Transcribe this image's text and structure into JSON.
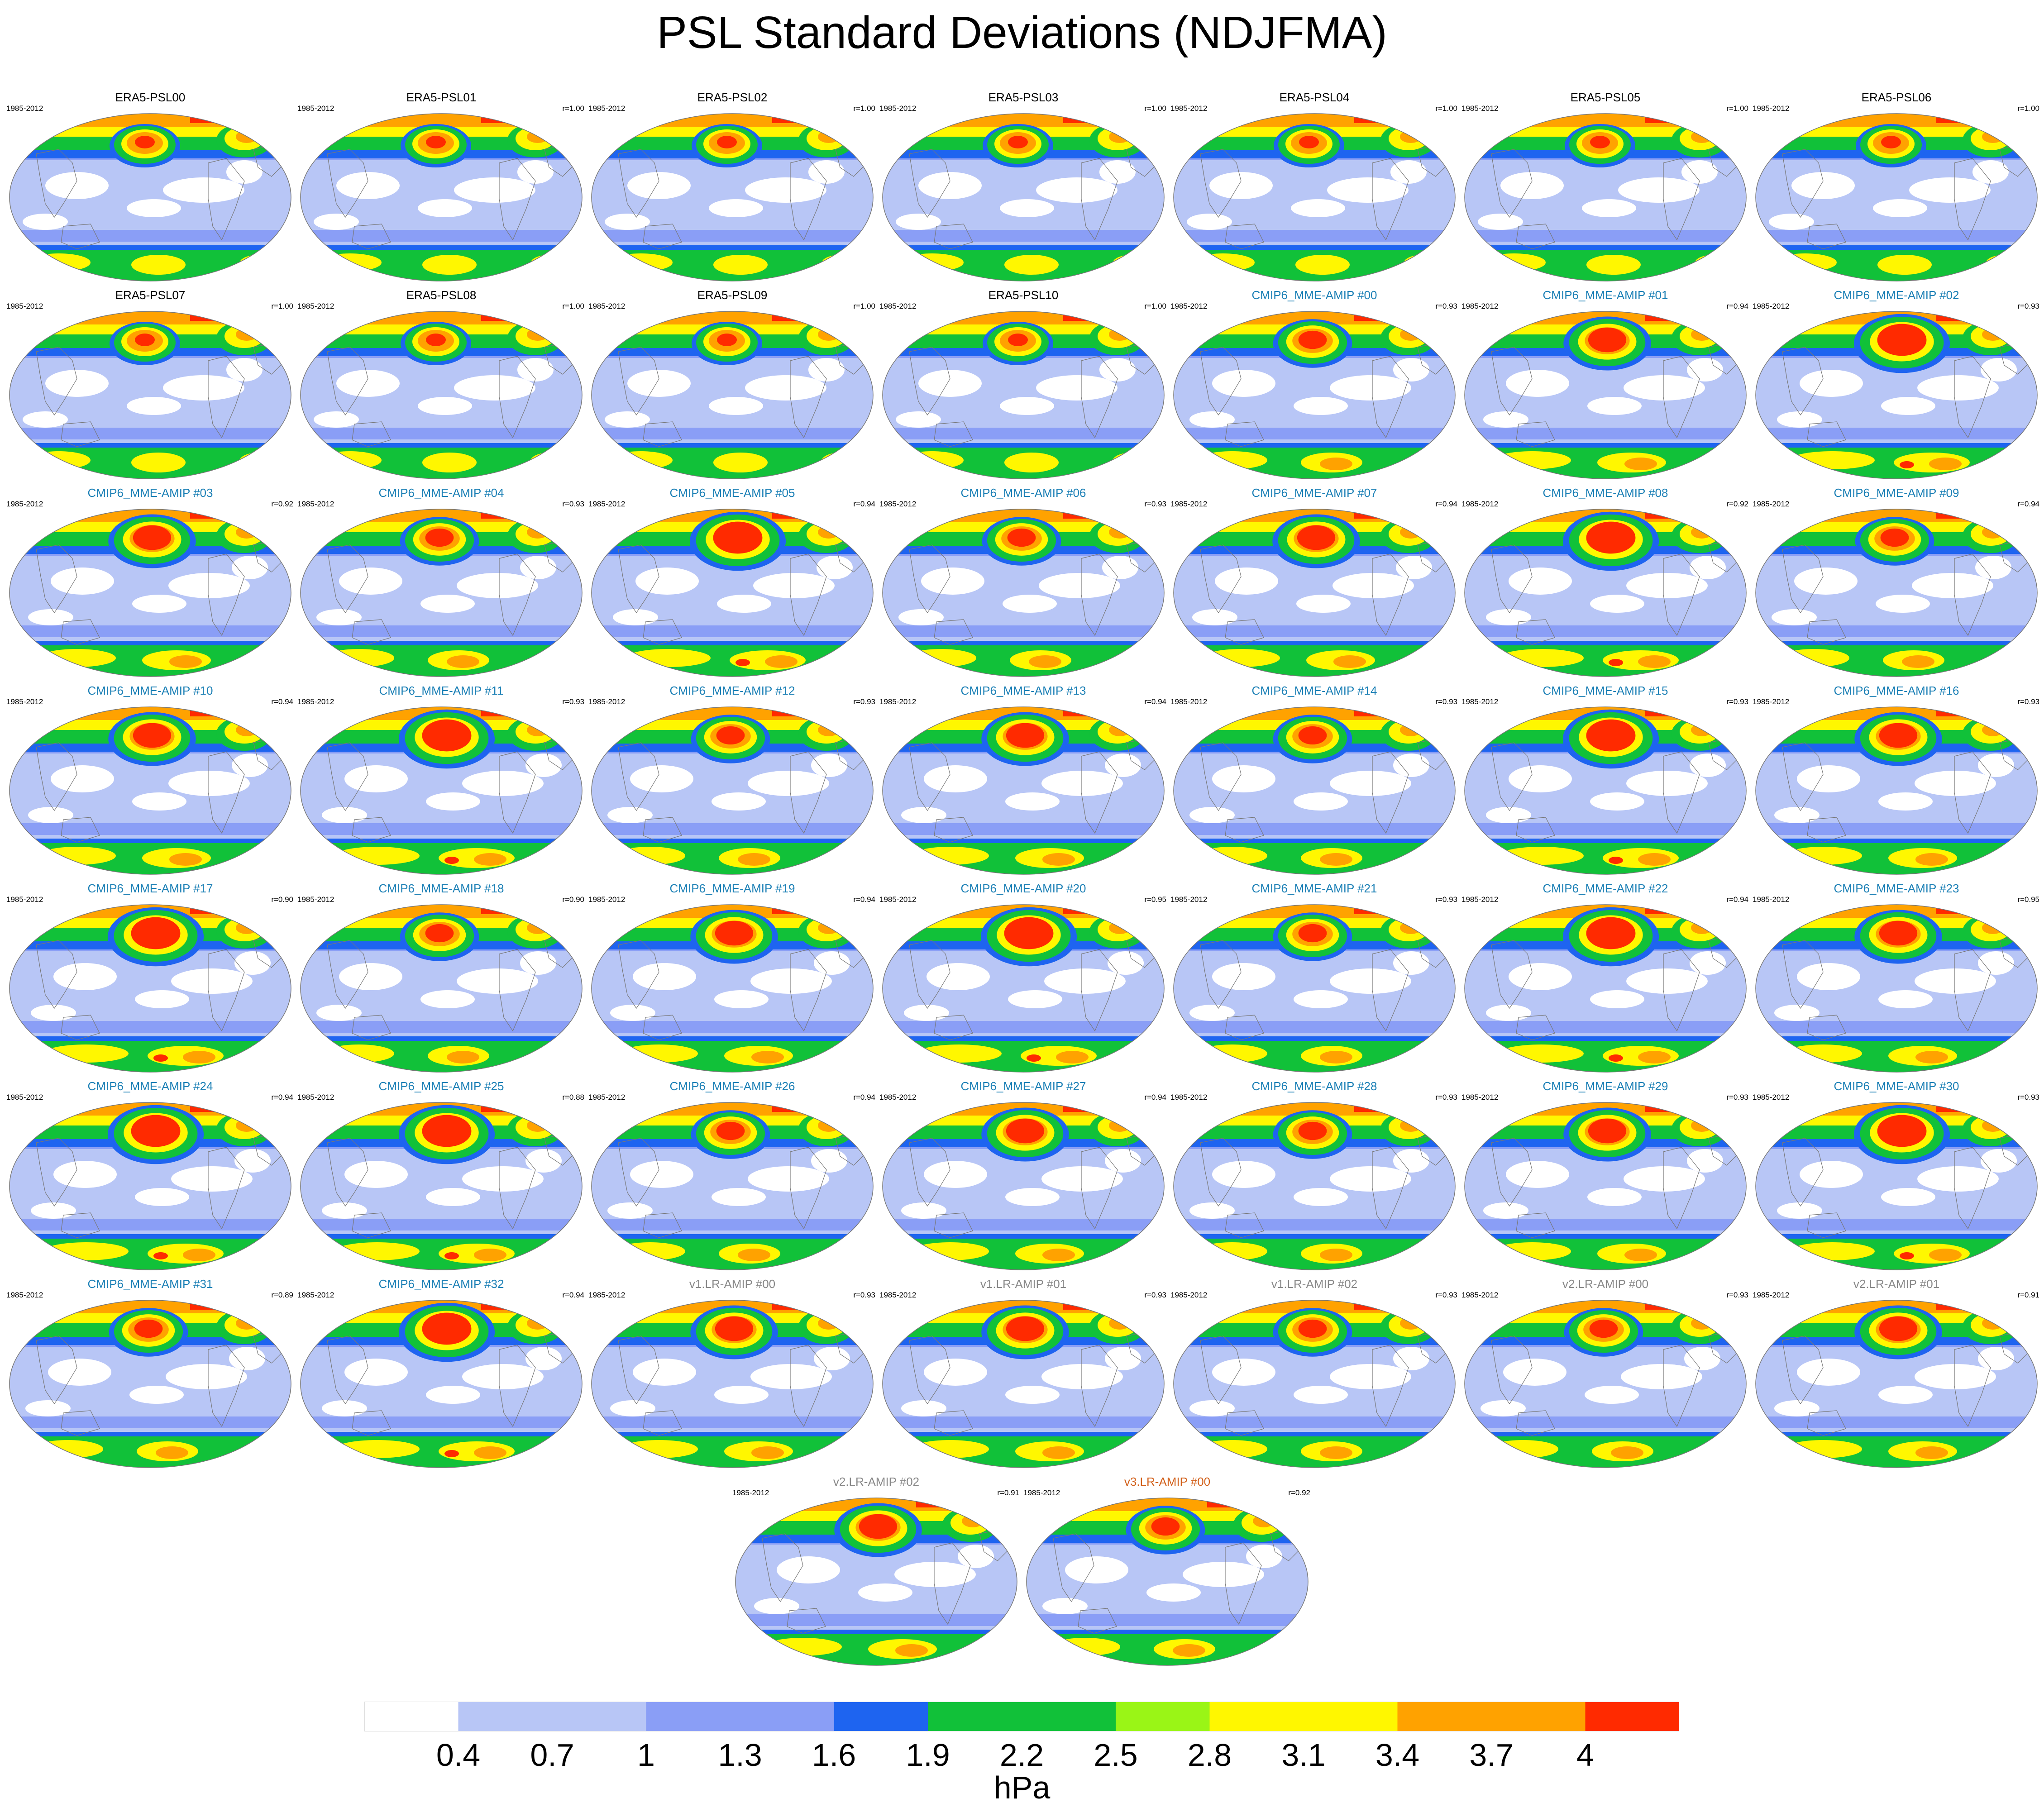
{
  "title": "PSL Standard Deviations (NDJFMA)",
  "period": "1985-2012",
  "units": "hPa",
  "colors": {
    "era5_title": "#000000",
    "cmip6_title": "#1a7fb5",
    "v1_title": "#888888",
    "v2_title": "#888888",
    "v3_title": "#d2601a"
  },
  "colorbar": {
    "colors": [
      "#ffffff",
      "#b8c6f6",
      "#8a9ef6",
      "#1e64f0",
      "#11c139",
      "#9af516",
      "#fff700",
      "#ffa200",
      "#ff2a00"
    ],
    "bins": [
      "#ffffff",
      "#b8c6f6",
      "#b8c6f6",
      "#8a9ef6",
      "#8a9ef6",
      "#1e64f0",
      "#11c139",
      "#11c139",
      "#9af516",
      "#fff700",
      "#fff700",
      "#ffa200",
      "#ffa200",
      "#ff2a00"
    ],
    "labels": [
      "0.4",
      "0.7",
      "1",
      "1.3",
      "1.6",
      "1.9",
      "2.2",
      "2.5",
      "2.8",
      "3.1",
      "3.4",
      "3.7",
      "4"
    ]
  },
  "panels": [
    {
      "name": "ERA5-PSL00",
      "r": "",
      "group": "era5",
      "variant": 0
    },
    {
      "name": "ERA5-PSL01",
      "r": "r=1.00",
      "group": "era5",
      "variant": 0
    },
    {
      "name": "ERA5-PSL02",
      "r": "r=1.00",
      "group": "era5",
      "variant": 0
    },
    {
      "name": "ERA5-PSL03",
      "r": "r=1.00",
      "group": "era5",
      "variant": 0
    },
    {
      "name": "ERA5-PSL04",
      "r": "r=1.00",
      "group": "era5",
      "variant": 0
    },
    {
      "name": "ERA5-PSL05",
      "r": "r=1.00",
      "group": "era5",
      "variant": 0
    },
    {
      "name": "ERA5-PSL06",
      "r": "r=1.00",
      "group": "era5",
      "variant": 0
    },
    {
      "name": "ERA5-PSL07",
      "r": "r=1.00",
      "group": "era5",
      "variant": 0
    },
    {
      "name": "ERA5-PSL08",
      "r": "r=1.00",
      "group": "era5",
      "variant": 0
    },
    {
      "name": "ERA5-PSL09",
      "r": "r=1.00",
      "group": "era5",
      "variant": 0
    },
    {
      "name": "ERA5-PSL10",
      "r": "r=1.00",
      "group": "era5",
      "variant": 0
    },
    {
      "name": "CMIP6_MME-AMIP  #00",
      "r": "r=0.93",
      "group": "cmip6",
      "variant": 1
    },
    {
      "name": "CMIP6_MME-AMIP  #01",
      "r": "r=0.94",
      "group": "cmip6",
      "variant": 2
    },
    {
      "name": "CMIP6_MME-AMIP  #02",
      "r": "r=0.93",
      "group": "cmip6",
      "variant": 3
    },
    {
      "name": "CMIP6_MME-AMIP  #03",
      "r": "r=0.92",
      "group": "cmip6",
      "variant": 2
    },
    {
      "name": "CMIP6_MME-AMIP  #04",
      "r": "r=0.93",
      "group": "cmip6",
      "variant": 1
    },
    {
      "name": "CMIP6_MME-AMIP  #05",
      "r": "r=0.94",
      "group": "cmip6",
      "variant": 3
    },
    {
      "name": "CMIP6_MME-AMIP  #06",
      "r": "r=0.93",
      "group": "cmip6",
      "variant": 1
    },
    {
      "name": "CMIP6_MME-AMIP  #07",
      "r": "r=0.94",
      "group": "cmip6",
      "variant": 2
    },
    {
      "name": "CMIP6_MME-AMIP  #08",
      "r": "r=0.92",
      "group": "cmip6",
      "variant": 3
    },
    {
      "name": "CMIP6_MME-AMIP  #09",
      "r": "r=0.94",
      "group": "cmip6",
      "variant": 1
    },
    {
      "name": "CMIP6_MME-AMIP  #10",
      "r": "r=0.94",
      "group": "cmip6",
      "variant": 2
    },
    {
      "name": "CMIP6_MME-AMIP  #11",
      "r": "r=0.93",
      "group": "cmip6",
      "variant": 3
    },
    {
      "name": "CMIP6_MME-AMIP  #12",
      "r": "r=0.93",
      "group": "cmip6",
      "variant": 1
    },
    {
      "name": "CMIP6_MME-AMIP  #13",
      "r": "r=0.94",
      "group": "cmip6",
      "variant": 2
    },
    {
      "name": "CMIP6_MME-AMIP  #14",
      "r": "r=0.93",
      "group": "cmip6",
      "variant": 1
    },
    {
      "name": "CMIP6_MME-AMIP  #15",
      "r": "r=0.93",
      "group": "cmip6",
      "variant": 3
    },
    {
      "name": "CMIP6_MME-AMIP  #16",
      "r": "r=0.93",
      "group": "cmip6",
      "variant": 2
    },
    {
      "name": "CMIP6_MME-AMIP  #17",
      "r": "r=0.90",
      "group": "cmip6",
      "variant": 3
    },
    {
      "name": "CMIP6_MME-AMIP  #18",
      "r": "r=0.90",
      "group": "cmip6",
      "variant": 1
    },
    {
      "name": "CMIP6_MME-AMIP  #19",
      "r": "r=0.94",
      "group": "cmip6",
      "variant": 2
    },
    {
      "name": "CMIP6_MME-AMIP  #20",
      "r": "r=0.95",
      "group": "cmip6",
      "variant": 3
    },
    {
      "name": "CMIP6_MME-AMIP  #21",
      "r": "r=0.93",
      "group": "cmip6",
      "variant": 1
    },
    {
      "name": "CMIP6_MME-AMIP  #22",
      "r": "r=0.94",
      "group": "cmip6",
      "variant": 3
    },
    {
      "name": "CMIP6_MME-AMIP  #23",
      "r": "r=0.95",
      "group": "cmip6",
      "variant": 2
    },
    {
      "name": "CMIP6_MME-AMIP  #24",
      "r": "r=0.94",
      "group": "cmip6",
      "variant": 3
    },
    {
      "name": "CMIP6_MME-AMIP  #25",
      "r": "r=0.88",
      "group": "cmip6",
      "variant": 3
    },
    {
      "name": "CMIP6_MME-AMIP  #26",
      "r": "r=0.94",
      "group": "cmip6",
      "variant": 1
    },
    {
      "name": "CMIP6_MME-AMIP  #27",
      "r": "r=0.94",
      "group": "cmip6",
      "variant": 2
    },
    {
      "name": "CMIP6_MME-AMIP  #28",
      "r": "r=0.93",
      "group": "cmip6",
      "variant": 1
    },
    {
      "name": "CMIP6_MME-AMIP  #29",
      "r": "r=0.93",
      "group": "cmip6",
      "variant": 2
    },
    {
      "name": "CMIP6_MME-AMIP  #30",
      "r": "r=0.93",
      "group": "cmip6",
      "variant": 3
    },
    {
      "name": "CMIP6_MME-AMIP  #31",
      "r": "r=0.89",
      "group": "cmip6",
      "variant": 1
    },
    {
      "name": "CMIP6_MME-AMIP  #32",
      "r": "r=0.94",
      "group": "cmip6",
      "variant": 3
    },
    {
      "name": "v1.LR-AMIP  #00",
      "r": "r=0.93",
      "group": "v1",
      "variant": 2
    },
    {
      "name": "v1.LR-AMIP  #01",
      "r": "r=0.93",
      "group": "v1",
      "variant": 2
    },
    {
      "name": "v1.LR-AMIP  #02",
      "r": "r=0.93",
      "group": "v1",
      "variant": 1
    },
    {
      "name": "v2.LR-AMIP  #00",
      "r": "r=0.93",
      "group": "v2",
      "variant": 1
    },
    {
      "name": "v2.LR-AMIP  #01",
      "r": "r=0.91",
      "group": "v2",
      "variant": 2
    },
    {
      "name": "v2.LR-AMIP  #02",
      "r": "r=0.91",
      "group": "v2",
      "variant": 2
    },
    {
      "name": "v3.LR-AMIP  #00",
      "r": "r=0.92",
      "group": "v3",
      "variant": 1
    }
  ]
}
